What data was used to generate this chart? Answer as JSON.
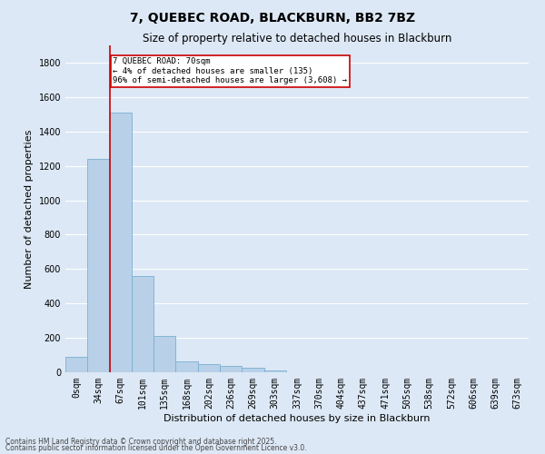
{
  "title": "7, QUEBEC ROAD, BLACKBURN, BB2 7BZ",
  "subtitle": "Size of property relative to detached houses in Blackburn",
  "xlabel": "Distribution of detached houses by size in Blackburn",
  "ylabel": "Number of detached properties",
  "footnote1": "Contains HM Land Registry data © Crown copyright and database right 2025.",
  "footnote2": "Contains public sector information licensed under the Open Government Licence v3.0.",
  "bar_labels": [
    "0sqm",
    "34sqm",
    "67sqm",
    "101sqm",
    "135sqm",
    "168sqm",
    "202sqm",
    "236sqm",
    "269sqm",
    "303sqm",
    "337sqm",
    "370sqm",
    "404sqm",
    "437sqm",
    "471sqm",
    "505sqm",
    "538sqm",
    "572sqm",
    "606sqm",
    "639sqm",
    "673sqm"
  ],
  "bar_values": [
    90,
    1240,
    1510,
    560,
    210,
    65,
    45,
    35,
    28,
    10,
    0,
    0,
    0,
    0,
    0,
    0,
    0,
    0,
    0,
    0,
    0
  ],
  "bar_color": "#b8d0e8",
  "bar_edge_color": "#7aafd4",
  "background_color": "#dce8f5",
  "fig_background_color": "#dce8f5",
  "grid_color": "#ffffff",
  "annotation_text": "7 QUEBEC ROAD: 70sqm\n← 4% of detached houses are smaller (135)\n96% of semi-detached houses are larger (3,608) →",
  "annotation_box_color": "#ffffff",
  "annotation_box_edge": "#cc0000",
  "vline_x": 1.5,
  "vline_color": "#cc0000",
  "ylim": [
    0,
    1900
  ],
  "yticks": [
    0,
    200,
    400,
    600,
    800,
    1000,
    1200,
    1400,
    1600,
    1800
  ],
  "title_fontsize": 10,
  "subtitle_fontsize": 8.5,
  "axis_label_fontsize": 8,
  "tick_fontsize": 7,
  "annotation_fontsize": 6.5,
  "footnote_fontsize": 5.5
}
